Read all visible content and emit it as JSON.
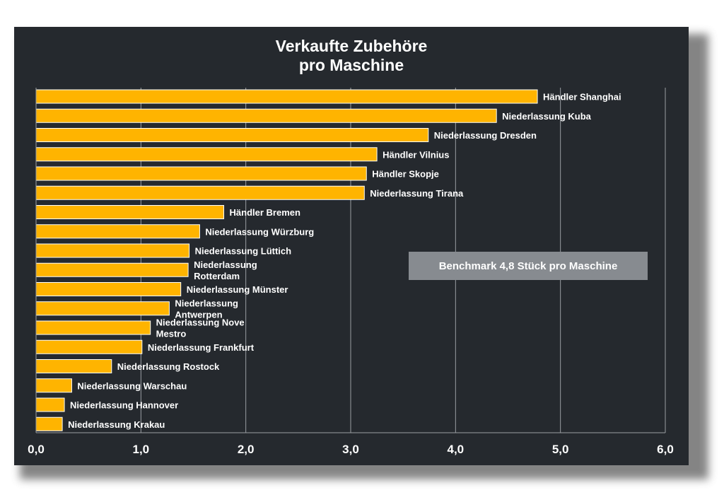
{
  "chart_data": {
    "type": "bar",
    "orientation": "horizontal",
    "title_lines": [
      "Verkaufte Zubehöre",
      "pro Maschine"
    ],
    "categories": [
      "Händler Shanghai",
      "Niederlassung Kuba",
      "Niederlassung Dresden",
      "Händler Vilnius",
      "Händler Skopje",
      "Niederlassung Tirana",
      "Händler Bremen",
      "Niederlassung Würzburg",
      "Niederlassung Lüttich",
      "Niederlassung Rotterdam",
      "Niederlassung Münster",
      "Niederlassung Antwerpen",
      "Niederlassung Nove Mestro",
      "Niederlassung Frankfurt",
      "Niederlassung Rostock",
      "Niederlassung Warschau",
      "Niederlassung Hannover",
      "Niederlassung Krakau"
    ],
    "category_label_lines": [
      [
        "Händler Shanghai"
      ],
      [
        "Niederlassung Kuba"
      ],
      [
        "Niederlassung Dresden"
      ],
      [
        "Händler Vilnius"
      ],
      [
        "Händler Skopje"
      ],
      [
        "Niederlassung Tirana"
      ],
      [
        "Händler Bremen"
      ],
      [
        "Niederlassung Würzburg"
      ],
      [
        "Niederlassung Lüttich"
      ],
      [
        "Niederlassung",
        "Rotterdam"
      ],
      [
        "Niederlassung Münster"
      ],
      [
        "Niederlassung",
        "Antwerpen"
      ],
      [
        "Niederlassung Nove",
        "Mestro"
      ],
      [
        "Niederlassung Frankfurt"
      ],
      [
        "Niederlassung Rostock"
      ],
      [
        "Niederlassung Warschau"
      ],
      [
        "Niederlassung Hannover"
      ],
      [
        "Niederlassung Krakau"
      ]
    ],
    "values": [
      4.78,
      4.39,
      3.74,
      3.25,
      3.15,
      3.13,
      1.79,
      1.56,
      1.46,
      1.45,
      1.38,
      1.27,
      1.09,
      1.01,
      0.72,
      0.34,
      0.27,
      0.25
    ],
    "xlim": [
      0,
      6
    ],
    "x_ticks": [
      0,
      1,
      2,
      3,
      4,
      5,
      6
    ],
    "x_tick_labels": [
      "0,0",
      "1,0",
      "2,0",
      "3,0",
      "4,0",
      "5,0",
      "6,0"
    ],
    "grid": "vertical",
    "annotation": "Benchmark 4,8 Stück pro Maschine",
    "colors": {
      "bar": "#ffb400",
      "bar_border": "#ffffff",
      "background": "#25292e",
      "grid": "#9a9ea3",
      "text": "#ffffff",
      "annotation_box": "#878b90"
    }
  }
}
